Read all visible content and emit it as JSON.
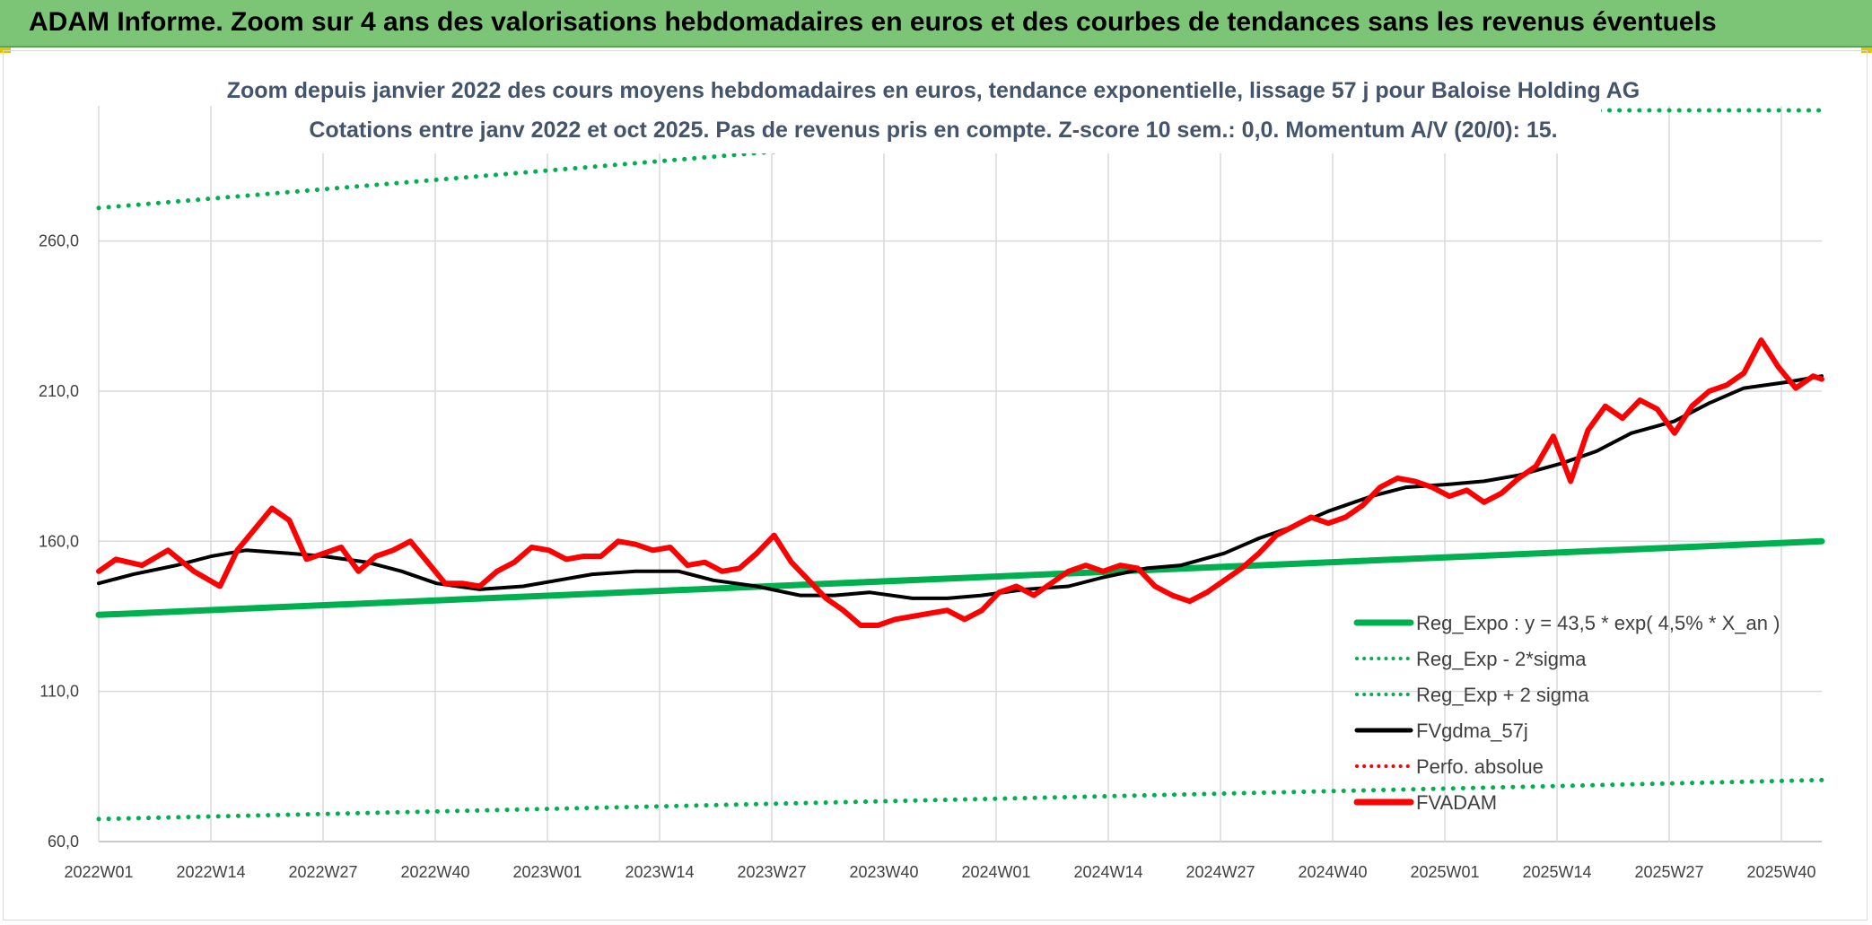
{
  "banner": {
    "title": "ADAM Informe. Zoom sur 4 ans des valorisations hebdomadaires en euros et des courbes de tendances sans les revenus éventuels",
    "background": "#7cc576"
  },
  "chart_data": {
    "type": "line",
    "title_line1": "Zoom depuis janvier 2022 des cours moyens hebdomadaires en euros, tendance exponentielle, lissage 57 j pour Baloise Holding AG",
    "title_line2": "Cotations entre janv 2022 et oct 2025. Pas de revenus pris en compte. Z-score 10 sem.: 0,0. Momentum A/V (20/0): 15.",
    "x_ticks": [
      "2022W01",
      "2022W14",
      "2022W27",
      "2022W40",
      "2023W01",
      "2023W14",
      "2023W27",
      "2023W40",
      "2024W01",
      "2024W14",
      "2024W27",
      "2024W40",
      "2025W01",
      "2025W14",
      "2025W27",
      "2025W40"
    ],
    "x_range": [
      1,
      200
    ],
    "ylim": [
      60,
      305
    ],
    "y_ticks": [
      "60,0",
      "110,0",
      "160,0",
      "210,0",
      "260,0"
    ],
    "grid": true,
    "legend_position": "right",
    "series": [
      {
        "name": "Reg_Expo : y = 43,5 * exp( 4,5% *  X_an )",
        "color": "#00b050",
        "style": "solid",
        "width": 7,
        "x": [
          1,
          200
        ],
        "y": [
          135.5,
          160.0
        ]
      },
      {
        "name": "Reg_Exp - 2*sigma",
        "color": "#00b050",
        "style": "dotted",
        "width": 5,
        "x": [
          1,
          200
        ],
        "y": [
          67.5,
          80.5
        ]
      },
      {
        "name": "Reg_Exp + 2 sigma",
        "color": "#00b050",
        "style": "dotted",
        "width": 5,
        "x": [
          1,
          80,
          175,
          200
        ],
        "y": [
          271.0,
          290.0,
          303.5,
          303.5
        ]
      },
      {
        "name": "FVgdma_57j",
        "color": "#000000",
        "style": "solid",
        "width": 4,
        "x": [
          1,
          5,
          10,
          14,
          18,
          23,
          27,
          32,
          36,
          40,
          45,
          50,
          54,
          58,
          63,
          68,
          72,
          77,
          82,
          86,
          90,
          95,
          99,
          103,
          108,
          113,
          117,
          122,
          126,
          131,
          135,
          139,
          143,
          148,
          152,
          157,
          161,
          165,
          170,
          174,
          178,
          183,
          187,
          191,
          196,
          200
        ],
        "y": [
          146,
          149,
          152,
          155,
          157,
          156,
          155,
          153,
          150,
          146,
          144,
          145,
          147,
          149,
          150,
          150,
          147,
          145,
          142,
          142,
          143,
          141,
          141,
          142,
          144,
          145,
          148,
          151,
          152,
          156,
          161,
          165,
          170,
          175,
          178,
          179,
          180,
          182,
          186,
          190,
          196,
          200,
          206,
          211,
          213,
          215
        ]
      },
      {
        "name": "Perfo. absolue",
        "color": "#ff0000",
        "style": "dotted",
        "width": 3,
        "x": [],
        "y": []
      },
      {
        "name": "FVADAM",
        "color": "#ff0000",
        "style": "solid",
        "width": 6,
        "x": [
          1,
          3,
          6,
          9,
          12,
          15,
          17,
          19,
          21,
          23,
          25,
          27,
          29,
          31,
          33,
          35,
          37,
          39,
          41,
          43,
          45,
          47,
          49,
          51,
          53,
          55,
          57,
          59,
          61,
          63,
          65,
          67,
          69,
          71,
          73,
          75,
          77,
          79,
          81,
          83,
          85,
          87,
          89,
          91,
          93,
          95,
          97,
          99,
          101,
          103,
          105,
          107,
          109,
          111,
          113,
          115,
          117,
          119,
          121,
          123,
          125,
          127,
          129,
          131,
          133,
          135,
          137,
          139,
          141,
          143,
          145,
          147,
          149,
          151,
          153,
          155,
          157,
          159,
          161,
          163,
          165,
          167,
          169,
          171,
          173,
          175,
          177,
          179,
          181,
          183,
          185,
          187,
          189,
          191,
          193,
          195,
          197,
          199,
          200
        ],
        "y": [
          150,
          154,
          152,
          157,
          150,
          145,
          157,
          164,
          171,
          167,
          154,
          156,
          158,
          150,
          155,
          157,
          160,
          153,
          146,
          146,
          145,
          150,
          153,
          158,
          157,
          154,
          155,
          155,
          160,
          159,
          157,
          158,
          152,
          153,
          150,
          151,
          156,
          162,
          153,
          147,
          141,
          137,
          132,
          132,
          134,
          135,
          136,
          137,
          134,
          137,
          143,
          145,
          142,
          146,
          150,
          152,
          150,
          152,
          151,
          145,
          142,
          140,
          143,
          147,
          151,
          156,
          162,
          165,
          168,
          166,
          168,
          172,
          178,
          181,
          180,
          178,
          175,
          177,
          173,
          176,
          181,
          185,
          195,
          180,
          197,
          205,
          201,
          207,
          204,
          196,
          205,
          210,
          212,
          216,
          227,
          218,
          211,
          215,
          214
        ]
      }
    ]
  }
}
